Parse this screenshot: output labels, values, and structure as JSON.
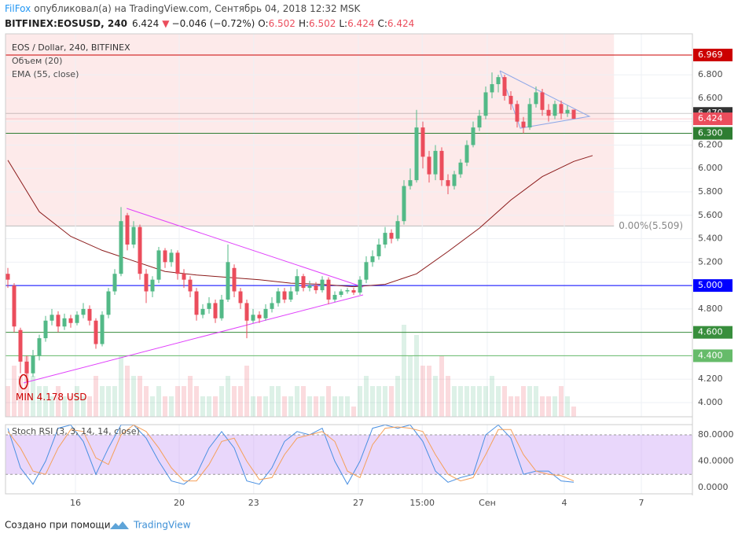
{
  "header": {
    "author": "FilFox",
    "published": "опубликовал(а) на TradingView.com, Сентябрь 04, 2018 12:32 MSK",
    "symbol": "BITFINEX:EOSUSD, 240",
    "price": 6.424,
    "arrow": "▼",
    "change": "−0.046 (−0.72%)",
    "ohlc": [
      {
        "label": "O:",
        "value": 6.502
      },
      {
        "label": "H:",
        "value": 6.502
      },
      {
        "label": "L:",
        "value": 6.424
      },
      {
        "label": "C:",
        "value": 6.424
      }
    ]
  },
  "chart_data": {
    "type": "candlestick",
    "legend": [
      "EOS / Dollar, 240, BITFINEX",
      "Объем (20)",
      "EMA (55, close)"
    ],
    "xlim": [
      -0.375,
      108.875
    ],
    "xticks": [
      {
        "value": 10.75,
        "label": "16"
      },
      {
        "value": 27.25,
        "label": "20"
      },
      {
        "value": 39.1,
        "label": "23"
      },
      {
        "value": 55.75,
        "label": "27"
      },
      {
        "value": 65.9,
        "label": "15:00"
      },
      {
        "value": 76.25,
        "label": "Сен"
      },
      {
        "value": 88.5,
        "label": "4"
      },
      {
        "value": 100.75,
        "label": "7"
      }
    ],
    "ylim": [
      3.879,
      7.15
    ],
    "yticks": [
      {
        "value": 4,
        "label": "4.000"
      },
      {
        "value": 4.2,
        "label": "4.200"
      },
      {
        "value": 4.4,
        "label": "4.400"
      },
      {
        "value": 4.6,
        "label": "4.600"
      },
      {
        "value": 4.8,
        "label": "4.800"
      },
      {
        "value": 5,
        "label": "5.000"
      },
      {
        "value": 5.2,
        "label": "5.200"
      },
      {
        "value": 5.4,
        "label": "5.400"
      },
      {
        "value": 5.6,
        "label": "5.600"
      },
      {
        "value": 5.8,
        "label": "5.800"
      },
      {
        "value": 6,
        "label": "6.000"
      },
      {
        "value": 6.2,
        "label": "6.200"
      },
      {
        "value": 6.4,
        "label": "6.400"
      },
      {
        "value": 6.6,
        "label": "6.600"
      },
      {
        "value": 6.8,
        "label": "6.800"
      }
    ],
    "grid": true,
    "up_color": "#53b987",
    "down_color": "#eb4d5c",
    "open": [
      5.1,
      5.0,
      4.62,
      4.35,
      4.25,
      4.4,
      4.55,
      4.7,
      4.75,
      4.65,
      4.72,
      4.68,
      4.75,
      4.8,
      4.7,
      4.5,
      4.75,
      4.95,
      5.1,
      5.6,
      5.35,
      5.5,
      5.1,
      4.95,
      5.05,
      5.3,
      5.2,
      5.28,
      5.1,
      5.05,
      4.95,
      4.75,
      4.8,
      4.85,
      4.72,
      4.88,
      5.15,
      4.95,
      4.85,
      4.7,
      4.75,
      4.72,
      4.8,
      4.85,
      4.95,
      4.88,
      4.95,
      5.08,
      4.98,
      5.0,
      4.96,
      5.05,
      4.88,
      4.92,
      4.95,
      4.96,
      4.94,
      5.05,
      5.2,
      5.25,
      5.35,
      5.45,
      5.4,
      5.55,
      5.85,
      5.9,
      6.35,
      6.1,
      5.95,
      6.15,
      5.9,
      5.85,
      5.95,
      6.05,
      6.2,
      6.35,
      6.45,
      6.65,
      6.72,
      6.78,
      6.62,
      6.55,
      6.4,
      6.35,
      6.55,
      6.65,
      6.5,
      6.45,
      6.55,
      6.47,
      6.502
    ],
    "high": [
      5.15,
      5.02,
      4.64,
      4.4,
      4.45,
      4.58,
      4.74,
      4.8,
      4.78,
      4.76,
      4.75,
      4.78,
      4.85,
      4.83,
      4.72,
      4.78,
      4.98,
      5.14,
      5.67,
      5.62,
      5.55,
      5.52,
      5.14,
      5.08,
      5.33,
      5.32,
      5.31,
      5.3,
      5.14,
      5.08,
      4.98,
      4.84,
      4.9,
      4.88,
      4.92,
      5.35,
      5.18,
      4.98,
      4.88,
      4.8,
      4.78,
      4.84,
      4.9,
      4.98,
      4.98,
      4.99,
      5.14,
      5.1,
      5.04,
      5.03,
      5.08,
      5.07,
      4.95,
      4.97,
      4.98,
      4.98,
      5.08,
      5.25,
      5.3,
      5.4,
      5.5,
      5.48,
      5.6,
      5.9,
      6.0,
      6.5,
      6.4,
      6.15,
      6.2,
      6.18,
      5.95,
      5.98,
      6.08,
      6.24,
      6.4,
      6.5,
      6.7,
      6.82,
      6.8,
      6.8,
      6.66,
      6.58,
      6.44,
      6.6,
      6.7,
      6.68,
      6.55,
      6.58,
      6.58,
      6.54,
      6.502
    ],
    "low": [
      4.98,
      4.6,
      4.25,
      4.178,
      4.22,
      4.36,
      4.52,
      4.66,
      4.6,
      4.62,
      4.64,
      4.66,
      4.72,
      4.66,
      4.46,
      4.48,
      4.72,
      4.92,
      5.08,
      5.3,
      5.32,
      5.05,
      4.85,
      4.9,
      5.02,
      5.15,
      5.16,
      5.05,
      4.98,
      4.9,
      4.7,
      4.72,
      4.76,
      4.68,
      4.7,
      4.86,
      4.9,
      4.8,
      4.55,
      4.68,
      4.68,
      4.7,
      4.77,
      4.82,
      4.85,
      4.86,
      4.92,
      4.95,
      4.95,
      4.93,
      4.94,
      4.84,
      4.86,
      4.9,
      4.93,
      4.92,
      4.92,
      5.02,
      5.16,
      5.22,
      5.32,
      5.36,
      5.38,
      5.52,
      5.82,
      5.88,
      6.0,
      5.88,
      5.9,
      5.85,
      5.78,
      5.82,
      5.92,
      6.02,
      6.18,
      6.32,
      6.42,
      6.6,
      6.65,
      6.58,
      6.5,
      6.35,
      6.3,
      6.33,
      6.52,
      6.45,
      6.4,
      6.42,
      6.42,
      6.44,
      6.424
    ],
    "close": [
      5.05,
      4.65,
      4.35,
      4.25,
      4.4,
      4.55,
      4.7,
      4.75,
      4.65,
      4.72,
      4.68,
      4.75,
      4.8,
      4.7,
      4.5,
      4.75,
      4.95,
      5.1,
      5.55,
      5.35,
      5.5,
      5.1,
      4.95,
      5.05,
      5.3,
      5.2,
      5.28,
      5.1,
      5.05,
      4.95,
      4.75,
      4.8,
      4.85,
      4.72,
      4.88,
      5.2,
      4.95,
      4.85,
      4.7,
      4.75,
      4.72,
      4.8,
      4.85,
      4.95,
      4.88,
      4.95,
      5.08,
      4.98,
      5.0,
      4.96,
      5.05,
      4.88,
      4.92,
      4.95,
      4.96,
      4.94,
      5.05,
      5.2,
      5.25,
      5.35,
      5.45,
      5.4,
      5.55,
      5.85,
      5.9,
      6.35,
      6.1,
      5.95,
      6.15,
      5.9,
      5.85,
      5.95,
      6.05,
      6.2,
      6.35,
      6.45,
      6.65,
      6.72,
      6.78,
      6.62,
      6.55,
      6.4,
      6.35,
      6.55,
      6.65,
      6.5,
      6.45,
      6.55,
      6.47,
      6.5,
      6.424
    ],
    "volume": [
      3,
      5,
      4,
      6,
      4,
      3,
      3,
      2,
      3,
      2,
      2,
      3,
      2,
      2,
      4,
      3,
      3,
      3,
      6,
      5,
      4,
      4,
      3,
      2,
      3,
      2,
      2,
      3,
      3,
      4,
      3,
      2,
      2,
      2,
      3,
      4,
      3,
      3,
      5,
      2,
      2,
      2,
      3,
      3,
      2,
      2,
      3,
      3,
      2,
      2,
      2,
      3,
      2,
      2,
      2,
      1,
      3,
      4,
      3,
      3,
      3,
      3,
      4,
      9,
      6,
      8,
      5,
      5,
      4,
      6,
      4,
      3,
      3,
      3,
      3,
      3,
      3,
      4,
      3,
      3,
      2,
      2,
      3,
      3,
      3,
      2,
      2,
      2,
      3,
      2,
      1
    ],
    "volume_lim": [
      0,
      10
    ],
    "ema": {
      "color": "#8b1a1a",
      "x": [
        0,
        5,
        10,
        15,
        20,
        25,
        30,
        35,
        40,
        45,
        50,
        55,
        60,
        65,
        70,
        75,
        80,
        85,
        90,
        93
      ],
      "values": [
        6.07,
        5.63,
        5.42,
        5.3,
        5.21,
        5.12,
        5.09,
        5.07,
        5.05,
        5.02,
        5.01,
        4.99,
        5.01,
        5.1,
        5.29,
        5.49,
        5.73,
        5.93,
        6.06,
        6.11
      ]
    },
    "levels": [
      {
        "value": 6.969,
        "label": "6.969",
        "color": "#cc0000"
      },
      {
        "value": 6.3,
        "label": "6.300",
        "color": "#2e7d32"
      },
      {
        "value": 5,
        "label": "5.000",
        "color": "#0000ff"
      },
      {
        "value": 4.6,
        "label": "4.600",
        "color": "#388e3c"
      },
      {
        "value": 4.4,
        "label": "4.400",
        "color": "#66bb6a"
      }
    ],
    "markers": [
      {
        "value": 6.47,
        "label": "6.470",
        "color": "#333333"
      },
      {
        "value": 6.424,
        "label": "6.424",
        "color": "#eb4d5c"
      }
    ],
    "fib": {
      "value": 5.509,
      "label": "0.00%(5.509)",
      "x_end": 96.4,
      "color": "#ef5350"
    },
    "drawings": [
      {
        "color": "#e040fb",
        "points": [
          [
            18.9,
            5.659
          ],
          [
            56.5,
            4.987
          ]
        ]
      },
      {
        "color": "#e040fb",
        "points": [
          [
            2.5,
            4.168
          ],
          [
            56.5,
            4.92
          ]
        ]
      },
      {
        "color": "#8fa8e8",
        "points": [
          [
            78.25,
            6.834
          ],
          [
            92.5,
            6.445
          ],
          [
            81.5,
            6.344
          ],
          [
            78.25,
            6.834
          ]
        ]
      }
    ],
    "annotations": [
      {
        "text": "MIN 4.178 USD",
        "x": 2.5,
        "y": 4.178,
        "color": "#cc0000"
      }
    ],
    "stoch": {
      "title": "Stoch RSI (3, 3, 14, 14, close)",
      "ylim": [
        -9.55,
        95.5
      ],
      "band": [
        20,
        80
      ],
      "yticks": [
        {
          "value": 0,
          "label": "0.0000"
        },
        {
          "value": 40,
          "label": "40.0000"
        },
        {
          "value": 80,
          "label": "80.0000"
        }
      ],
      "x": [
        0,
        2,
        4,
        6,
        8,
        10,
        12,
        14,
        16,
        18,
        20,
        22,
        24,
        26,
        28,
        30,
        32,
        34,
        36,
        38,
        40,
        42,
        44,
        46,
        48,
        50,
        52,
        54,
        56,
        58,
        60,
        62,
        64,
        66,
        68,
        70,
        72,
        74,
        76,
        78,
        80,
        82,
        84,
        86,
        88,
        90
      ],
      "series": [
        {
          "color": "#4a90e2",
          "values": [
            90,
            30,
            5,
            40,
            90,
            95,
            70,
            20,
            60,
            95,
            95,
            75,
            40,
            10,
            5,
            20,
            60,
            85,
            60,
            10,
            5,
            30,
            70,
            85,
            80,
            90,
            40,
            5,
            40,
            90,
            95,
            90,
            95,
            70,
            25,
            8,
            15,
            20,
            80,
            95,
            75,
            20,
            25,
            25,
            10,
            8
          ]
        },
        {
          "color": "#f5a05a",
          "values": [
            85,
            60,
            25,
            20,
            60,
            88,
            85,
            45,
            35,
            80,
            95,
            85,
            60,
            30,
            10,
            10,
            35,
            70,
            75,
            40,
            12,
            15,
            50,
            75,
            80,
            85,
            70,
            25,
            15,
            65,
            90,
            92,
            90,
            85,
            50,
            20,
            10,
            15,
            50,
            88,
            88,
            50,
            25,
            20,
            18,
            10
          ]
        }
      ]
    }
  },
  "footer": {
    "made_with": "Создано при помощи",
    "brand": "TradingView"
  }
}
